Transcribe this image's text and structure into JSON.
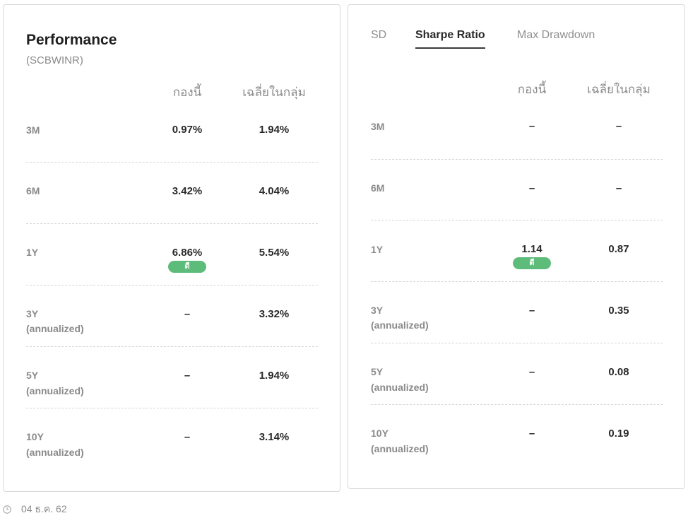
{
  "performance": {
    "title": "Performance",
    "fund_code": "(SCBWINR)",
    "col_fund": "กองนี้",
    "col_avg": "เฉลี่ยในกลุ่ม",
    "rows": [
      {
        "label": "3M",
        "sub": "",
        "fund": "0.97%",
        "avg": "1.94%",
        "badge": ""
      },
      {
        "label": "6M",
        "sub": "",
        "fund": "3.42%",
        "avg": "4.04%",
        "badge": ""
      },
      {
        "label": "1Y",
        "sub": "",
        "fund": "6.86%",
        "avg": "5.54%",
        "badge": "ดี"
      },
      {
        "label": "3Y",
        "sub": "(annualized)",
        "fund": "–",
        "avg": "3.32%",
        "badge": ""
      },
      {
        "label": "5Y",
        "sub": "(annualized)",
        "fund": "–",
        "avg": "1.94%",
        "badge": ""
      },
      {
        "label": "10Y",
        "sub": "(annualized)",
        "fund": "–",
        "avg": "3.14%",
        "badge": ""
      }
    ]
  },
  "risk": {
    "tabs": [
      {
        "label": "SD",
        "active": false
      },
      {
        "label": "Sharpe Ratio",
        "active": true
      },
      {
        "label": "Max Drawdown",
        "active": false
      }
    ],
    "col_fund": "กองนี้",
    "col_avg": "เฉลี่ยในกลุ่ม",
    "rows": [
      {
        "label": "3M",
        "sub": "",
        "fund": "–",
        "avg": "–",
        "badge": ""
      },
      {
        "label": "6M",
        "sub": "",
        "fund": "–",
        "avg": "–",
        "badge": ""
      },
      {
        "label": "1Y",
        "sub": "",
        "fund": "1.14",
        "avg": "0.87",
        "badge": "ดี"
      },
      {
        "label": "3Y",
        "sub": "(annualized)",
        "fund": "–",
        "avg": "0.35",
        "badge": ""
      },
      {
        "label": "5Y",
        "sub": "(annualized)",
        "fund": "–",
        "avg": "0.08",
        "badge": ""
      },
      {
        "label": "10Y",
        "sub": "(annualized)",
        "fund": "–",
        "avg": "0.19",
        "badge": ""
      }
    ]
  },
  "footer": {
    "date": "04 ธ.ค. 62",
    "icon": "clock-icon"
  },
  "colors": {
    "badge_good": "#5ebc7b",
    "border": "#d9d9d9",
    "muted_text": "#8a8a8a"
  }
}
